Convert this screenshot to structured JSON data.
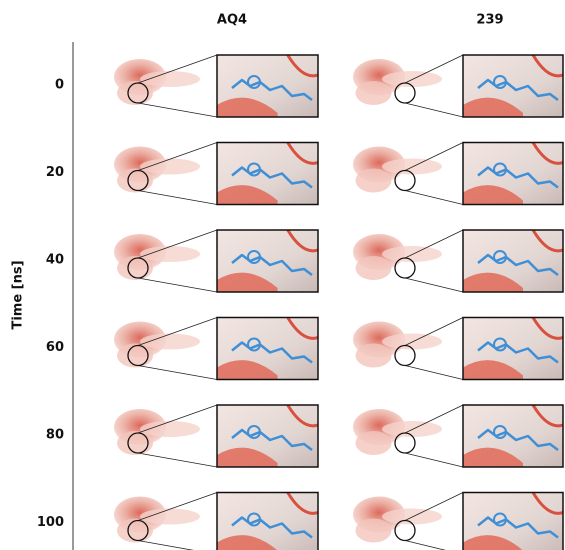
{
  "figure": {
    "columns": [
      "AQ4",
      "239"
    ],
    "rows": [
      0,
      20,
      40,
      60,
      80,
      100
    ],
    "axis_label": "Time [ns]"
  }
}
